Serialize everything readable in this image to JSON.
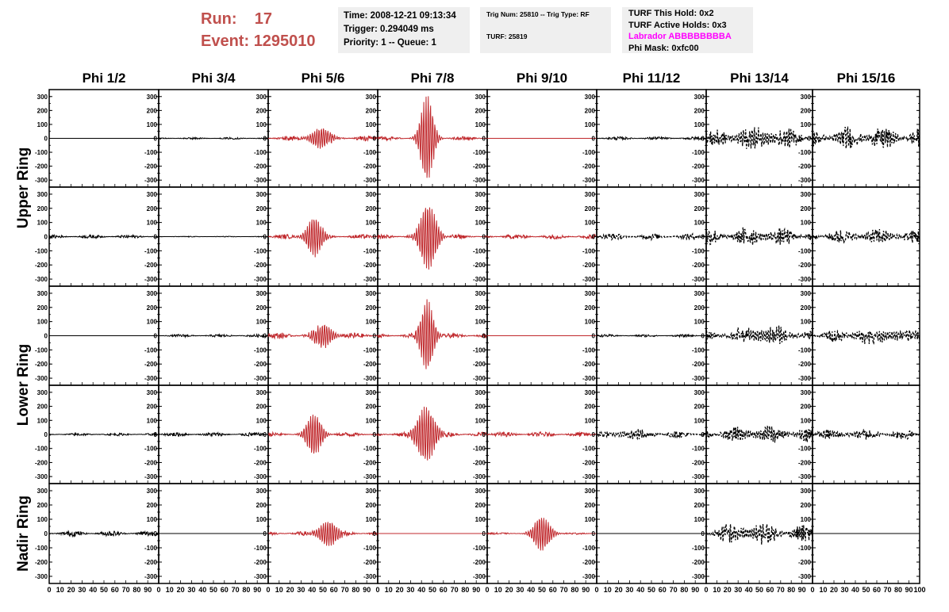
{
  "header": {
    "run_label": "Run:",
    "run_value": "17",
    "event_label": "Event:",
    "event_value": "1295010"
  },
  "info_time": {
    "time": "Time: 2008-12-21 09:13:34",
    "trigger": "Trigger: 0.294049 ms",
    "priority": "Priority: 1 -- Queue: 1"
  },
  "info_trig": {
    "trig_num": "Trig Num: 25810 -- Trig Type: RF",
    "turf": "TURF: 25819"
  },
  "info_turf": {
    "this_hold": "TURF This Hold: 0x2",
    "active_holds": "TURF Active Holds: 0x3",
    "labrador": "Labrador ABBBBBBBBA",
    "phi_mask": "Phi Mask: 0xfc00"
  },
  "colors": {
    "red_trace": "#c0282c",
    "black_trace": "#000000",
    "header_red": "#c0504d",
    "magenta": "#ff00ff",
    "info_bg": "#efefef"
  },
  "chart_data": {
    "type": "line",
    "x_range": [
      0,
      100
    ],
    "y_range": [
      -350,
      350
    ],
    "y_ticks": [
      300,
      200,
      100,
      0,
      -100,
      -200,
      -300
    ],
    "y_tick_labels": [
      "300",
      "200",
      "100",
      "0",
      "-100",
      "-200",
      "-300"
    ],
    "x_tick_labels": [
      "0",
      "10",
      "20",
      "30",
      "40",
      "50",
      "60",
      "70",
      "80",
      "90",
      "100"
    ],
    "columns": [
      "Phi 1/2",
      "Phi 3/4",
      "Phi 5/6",
      "Phi 7/8",
      "Phi 9/10",
      "Phi 11/12",
      "Phi 13/14",
      "Phi 15/16"
    ],
    "ring_labels": [
      {
        "label": "Upper Ring",
        "rows": [
          0,
          1
        ]
      },
      {
        "label": "Lower Ring",
        "rows": [
          2,
          3
        ]
      },
      {
        "label": "Nadir Ring",
        "rows": [
          4
        ]
      }
    ],
    "rows": [
      [
        {
          "style": "solid",
          "color": "black",
          "noise": 0,
          "peak": 0,
          "center": 50,
          "width": 10
        },
        {
          "style": "solid",
          "color": "black",
          "noise": 7,
          "peak": 0,
          "center": 50,
          "width": 10
        },
        {
          "style": "solid",
          "color": "red",
          "noise": 20,
          "peak": 75,
          "center": 48,
          "width": 10
        },
        {
          "style": "solid",
          "color": "red",
          "noise": 14,
          "peak": 320,
          "center": 45,
          "width": 7
        },
        {
          "style": "solid",
          "color": "red",
          "noise": 0,
          "peak": 0,
          "center": 50,
          "width": 10
        },
        {
          "style": "solid",
          "color": "black",
          "noise": 12,
          "peak": 0,
          "center": 50,
          "width": 10
        },
        {
          "style": "dashed",
          "color": "black",
          "noise": 60,
          "peak": 40,
          "center": 50,
          "width": 30
        },
        {
          "style": "dashed",
          "color": "black",
          "noise": 75,
          "peak": 20,
          "center": 50,
          "width": 40
        }
      ],
      [
        {
          "style": "solid",
          "color": "black",
          "noise": 13,
          "peak": 0,
          "center": 50,
          "width": 10
        },
        {
          "style": "solid",
          "color": "black",
          "noise": 3,
          "peak": 0,
          "center": 50,
          "width": 10
        },
        {
          "style": "solid",
          "color": "red",
          "noise": 16,
          "peak": 140,
          "center": 42,
          "width": 8
        },
        {
          "style": "solid",
          "color": "red",
          "noise": 16,
          "peak": 240,
          "center": 46,
          "width": 9
        },
        {
          "style": "solid",
          "color": "red",
          "noise": 17,
          "peak": 0,
          "center": 50,
          "width": 10
        },
        {
          "style": "dashed",
          "color": "black",
          "noise": 22,
          "peak": 0,
          "center": 50,
          "width": 10
        },
        {
          "style": "dashed",
          "color": "black",
          "noise": 60,
          "peak": 20,
          "center": 50,
          "width": 30
        },
        {
          "style": "dashed",
          "color": "black",
          "noise": 50,
          "peak": 15,
          "center": 60,
          "width": 30
        }
      ],
      [
        {
          "style": "solid",
          "color": "black",
          "noise": 0,
          "peak": 0,
          "center": 50,
          "width": 10
        },
        {
          "style": "solid",
          "color": "black",
          "noise": 10,
          "peak": 0,
          "center": 50,
          "width": 10
        },
        {
          "style": "solid",
          "color": "red",
          "noise": 22,
          "peak": 80,
          "center": 50,
          "width": 10
        },
        {
          "style": "solid",
          "color": "red",
          "noise": 16,
          "peak": 260,
          "center": 45,
          "width": 7
        },
        {
          "style": "solid",
          "color": "red",
          "noise": 0,
          "peak": 0,
          "center": 50,
          "width": 10
        },
        {
          "style": "solid",
          "color": "black",
          "noise": 9,
          "peak": 0,
          "center": 50,
          "width": 10
        },
        {
          "style": "dashed",
          "color": "black",
          "noise": 45,
          "peak": 35,
          "center": 55,
          "width": 30
        },
        {
          "style": "dashed",
          "color": "black",
          "noise": 45,
          "peak": 35,
          "center": 60,
          "width": 25
        }
      ],
      [
        {
          "style": "solid",
          "color": "black",
          "noise": 10,
          "peak": 0,
          "center": 50,
          "width": 10
        },
        {
          "style": "solid",
          "color": "black",
          "noise": 15,
          "peak": 0,
          "center": 50,
          "width": 10
        },
        {
          "style": "solid",
          "color": "red",
          "noise": 16,
          "peak": 150,
          "center": 42,
          "width": 8
        },
        {
          "style": "solid",
          "color": "red",
          "noise": 18,
          "peak": 200,
          "center": 44,
          "width": 10
        },
        {
          "style": "solid",
          "color": "red",
          "noise": 18,
          "peak": 0,
          "center": 50,
          "width": 10
        },
        {
          "style": "dashed",
          "color": "black",
          "noise": 25,
          "peak": 20,
          "center": 35,
          "width": 20
        },
        {
          "style": "dashed",
          "color": "black",
          "noise": 55,
          "peak": 20,
          "center": 50,
          "width": 30
        },
        {
          "style": "dashed",
          "color": "black",
          "noise": 35,
          "peak": 10,
          "center": 40,
          "width": 30
        }
      ],
      [
        {
          "style": "solid",
          "color": "black",
          "noise": 20,
          "peak": 0,
          "center": 50,
          "width": 10
        },
        {
          "style": "solid",
          "color": "black",
          "noise": 0,
          "peak": 0,
          "center": 50,
          "width": 10
        },
        {
          "style": "solid",
          "color": "red",
          "noise": 15,
          "peak": 90,
          "center": 55,
          "width": 10
        },
        {
          "style": "solid",
          "color": "red",
          "noise": 0,
          "peak": 0,
          "center": 50,
          "width": 10
        },
        {
          "style": "solid",
          "color": "red",
          "noise": 7,
          "peak": 120,
          "center": 50,
          "width": 9
        },
        {
          "style": "solid",
          "color": "black",
          "noise": 0,
          "peak": 0,
          "center": 50,
          "width": 10
        },
        {
          "style": "dashed",
          "color": "black",
          "noise": 60,
          "peak": 30,
          "center": 40,
          "width": 30
        },
        {
          "style": "solid",
          "color": "black",
          "noise": 0,
          "peak": 0,
          "center": 50,
          "width": 10
        }
      ]
    ]
  }
}
